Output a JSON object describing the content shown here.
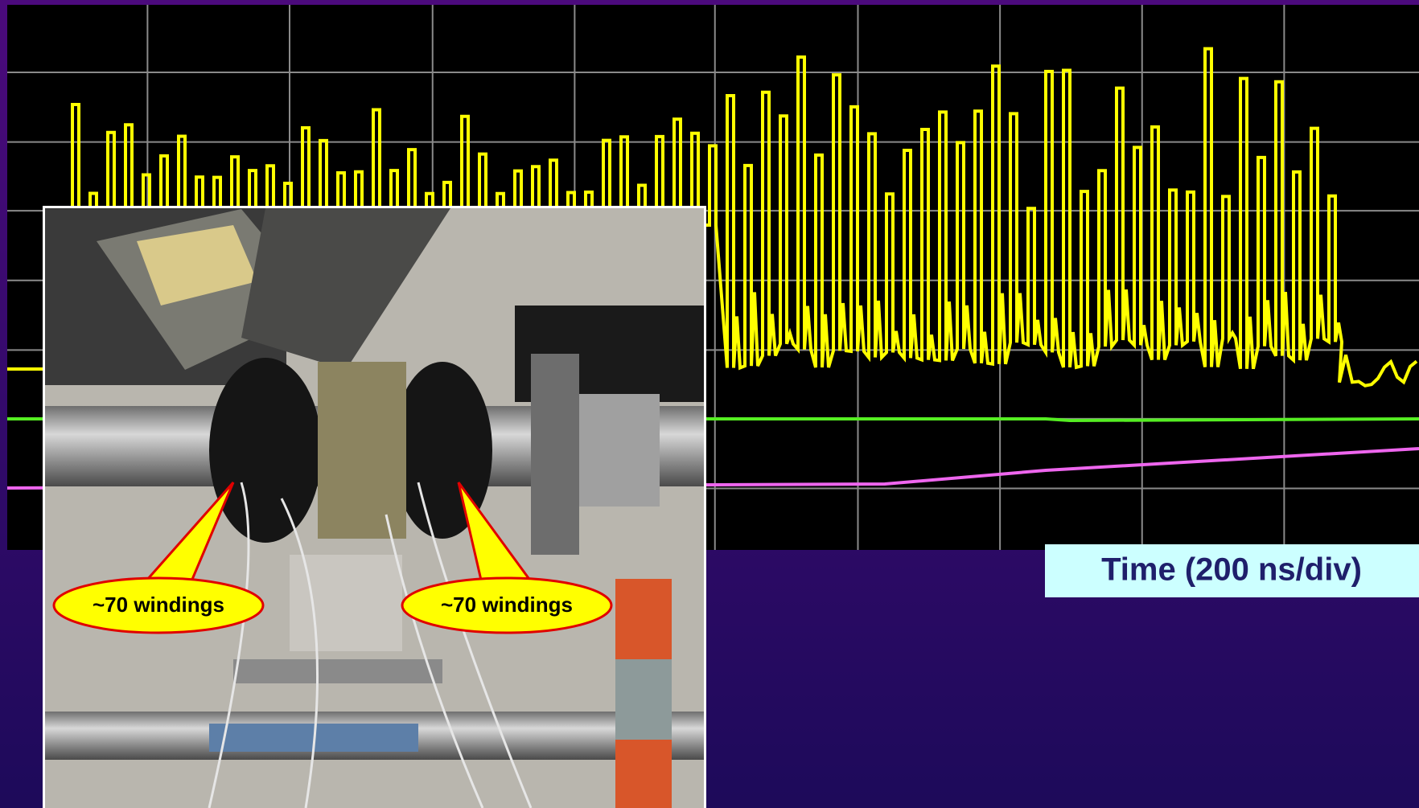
{
  "callouts": [
    {
      "label": "~70 windings"
    },
    {
      "label": "~70 windings"
    }
  ],
  "axis_label": "Time (200 ns/div)"
}
